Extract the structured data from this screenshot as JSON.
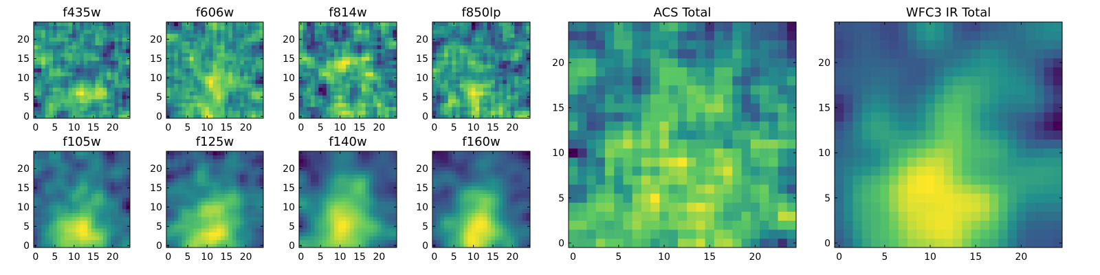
{
  "colors": {
    "colormap": [
      "#440154",
      "#3b528b",
      "#21908d",
      "#5dc963",
      "#fde725"
    ]
  },
  "chart_data": [
    {
      "type": "heatmap",
      "title": "f435w",
      "grid_size": 25,
      "smoothness": 0.15,
      "x_ticks": [
        "0",
        "5",
        "10",
        "15",
        "20"
      ],
      "y_ticks": [
        "0",
        "5",
        "10",
        "15",
        "20"
      ],
      "xlim": [
        0,
        25
      ],
      "ylim": [
        0,
        25
      ]
    },
    {
      "type": "heatmap",
      "title": "f606w",
      "grid_size": 25,
      "smoothness": 0.25,
      "x_ticks": [
        "0",
        "5",
        "10",
        "15",
        "20"
      ],
      "y_ticks": [
        "0",
        "5",
        "10",
        "15",
        "20"
      ],
      "xlim": [
        0,
        25
      ],
      "ylim": [
        0,
        25
      ]
    },
    {
      "type": "heatmap",
      "title": "f814w",
      "grid_size": 25,
      "smoothness": 0.2,
      "x_ticks": [
        "0",
        "5",
        "10",
        "15",
        "20"
      ],
      "y_ticks": [
        "0",
        "5",
        "10",
        "15",
        "20"
      ],
      "xlim": [
        0,
        25
      ],
      "ylim": [
        0,
        25
      ]
    },
    {
      "type": "heatmap",
      "title": "f850lp",
      "grid_size": 25,
      "smoothness": 0.2,
      "x_ticks": [
        "0",
        "5",
        "10",
        "15",
        "20"
      ],
      "y_ticks": [
        "0",
        "5",
        "10",
        "15",
        "20"
      ],
      "xlim": [
        0,
        25
      ],
      "ylim": [
        0,
        25
      ]
    },
    {
      "type": "heatmap",
      "title": "f105w",
      "grid_size": 25,
      "smoothness": 0.55,
      "x_ticks": [
        "0",
        "5",
        "10",
        "15",
        "20"
      ],
      "y_ticks": [
        "0",
        "5",
        "10",
        "15",
        "20"
      ],
      "xlim": [
        0,
        25
      ],
      "ylim": [
        0,
        25
      ]
    },
    {
      "type": "heatmap",
      "title": "f125w",
      "grid_size": 25,
      "smoothness": 0.6,
      "x_ticks": [
        "0",
        "5",
        "10",
        "15",
        "20"
      ],
      "y_ticks": [
        "0",
        "5",
        "10",
        "15",
        "20"
      ],
      "xlim": [
        0,
        25
      ],
      "ylim": [
        0,
        25
      ]
    },
    {
      "type": "heatmap",
      "title": "f140w",
      "grid_size": 25,
      "smoothness": 0.65,
      "x_ticks": [
        "0",
        "5",
        "10",
        "15",
        "20"
      ],
      "y_ticks": [
        "0",
        "5",
        "10",
        "15",
        "20"
      ],
      "xlim": [
        0,
        25
      ],
      "ylim": [
        0,
        25
      ]
    },
    {
      "type": "heatmap",
      "title": "f160w",
      "grid_size": 25,
      "smoothness": 0.65,
      "x_ticks": [
        "0",
        "5",
        "10",
        "15",
        "20"
      ],
      "y_ticks": [
        "0",
        "5",
        "10",
        "15",
        "20"
      ],
      "xlim": [
        0,
        25
      ],
      "ylim": [
        0,
        25
      ]
    },
    {
      "type": "heatmap",
      "title": "ACS Total",
      "grid_size": 25,
      "smoothness": 0.35,
      "x_ticks": [
        "0",
        "5",
        "10",
        "15",
        "20"
      ],
      "y_ticks": [
        "0",
        "5",
        "10",
        "15",
        "20"
      ],
      "xlim": [
        0,
        25
      ],
      "ylim": [
        0,
        25
      ]
    },
    {
      "type": "heatmap",
      "title": "WFC3 IR Total",
      "grid_size": 25,
      "smoothness": 0.75,
      "x_ticks": [
        "0",
        "5",
        "10",
        "15",
        "20"
      ],
      "y_ticks": [
        "0",
        "5",
        "10",
        "15",
        "20"
      ],
      "xlim": [
        0,
        25
      ],
      "ylim": [
        0,
        25
      ]
    }
  ]
}
